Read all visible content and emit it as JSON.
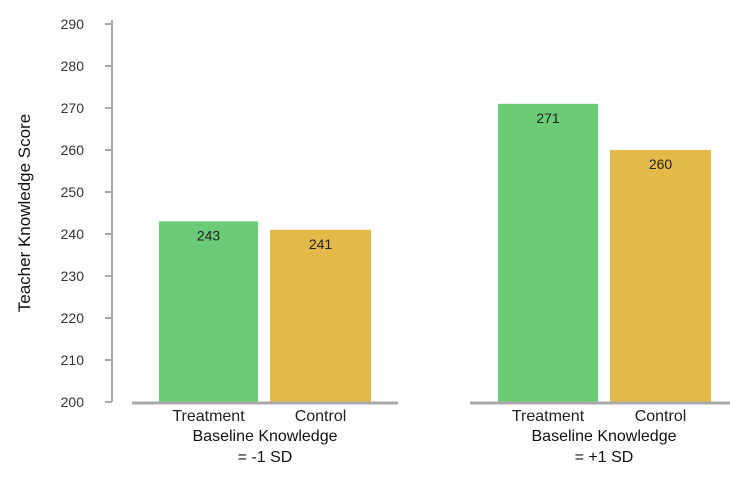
{
  "chart_data": {
    "type": "bar",
    "ylabel": "Teacher Knowledge Score",
    "ylim": [
      200,
      290
    ],
    "yticks": [
      200,
      210,
      220,
      230,
      240,
      250,
      260,
      270,
      280,
      290
    ],
    "grid": false,
    "groups": [
      {
        "label_line1": "Baseline Knowledge",
        "label_line2": "= -1 SD",
        "bars": [
          {
            "category": "Treatment",
            "value": 243,
            "label": "243",
            "color": "#6bcb77"
          },
          {
            "category": "Control",
            "value": 241,
            "label": "241",
            "color": "#e3b94a"
          }
        ]
      },
      {
        "label_line1": "Baseline Knowledge",
        "label_line2": "= +1 SD",
        "bars": [
          {
            "category": "Treatment",
            "value": 271,
            "label": "271",
            "color": "#6bcb77"
          },
          {
            "category": "Control",
            "value": 260,
            "label": "260",
            "color": "#e3b94a"
          }
        ]
      }
    ],
    "colors": {
      "treatment": "#6bcb77",
      "control": "#e3b94a",
      "axis": "#aaaaaa"
    }
  }
}
